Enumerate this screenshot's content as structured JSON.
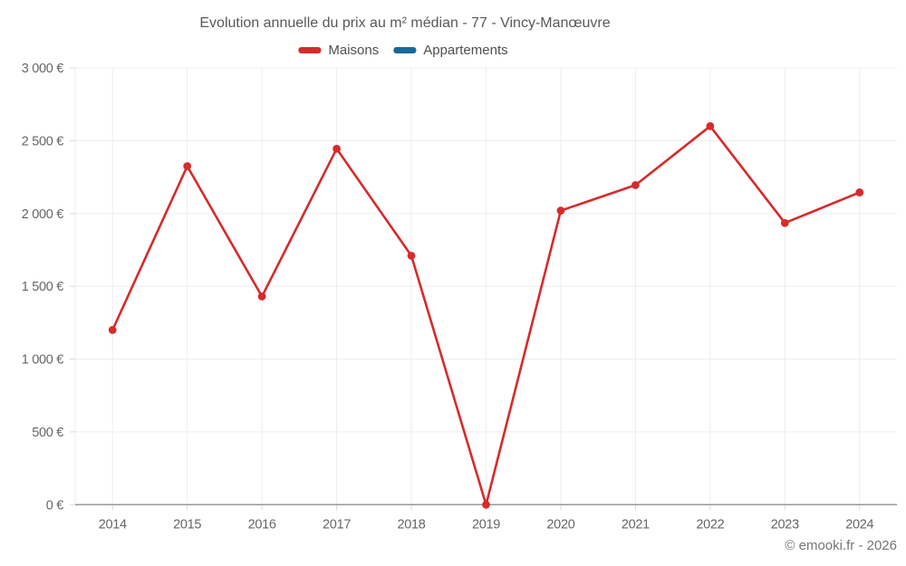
{
  "chart": {
    "title": "Evolution annuelle du prix au m² médian - 77 - Vincy-Manœuvre",
    "legend": [
      {
        "label": "Maisons",
        "color": "#d62b2b"
      },
      {
        "label": "Appartements",
        "color": "#17689b"
      }
    ]
  },
  "footer": {
    "copyright": "© emooki.fr - 2026"
  },
  "chart_data": {
    "type": "line",
    "title": "Evolution annuelle du prix au m² médian - 77 - Vincy-Manœuvre",
    "categories": [
      "2014",
      "2015",
      "2016",
      "2017",
      "2018",
      "2019",
      "2020",
      "2021",
      "2022",
      "2023",
      "2024"
    ],
    "series": [
      {
        "name": "Maisons",
        "color": "#d62b2b",
        "values": [
          1200,
          2325,
          1430,
          2445,
          1710,
          0,
          2020,
          2195,
          2600,
          1935,
          2145
        ]
      },
      {
        "name": "Appartements",
        "color": "#17689b",
        "values": [
          null,
          null,
          null,
          null,
          null,
          null,
          null,
          null,
          null,
          null,
          null
        ]
      }
    ],
    "xlabel": "",
    "ylabel": "",
    "ylim": [
      0,
      3000
    ],
    "ytick_step": 500,
    "ytick_labels": [
      "0 €",
      "500 €",
      "1 000 €",
      "1 500 €",
      "2 000 €",
      "2 500 €",
      "3 000 €"
    ],
    "grid": true,
    "legend_position": "top",
    "colors": {
      "grid": "#ededed",
      "axis_baseline": "#999999",
      "tick": "#d9d9d9",
      "tick_label": "#666666"
    }
  }
}
